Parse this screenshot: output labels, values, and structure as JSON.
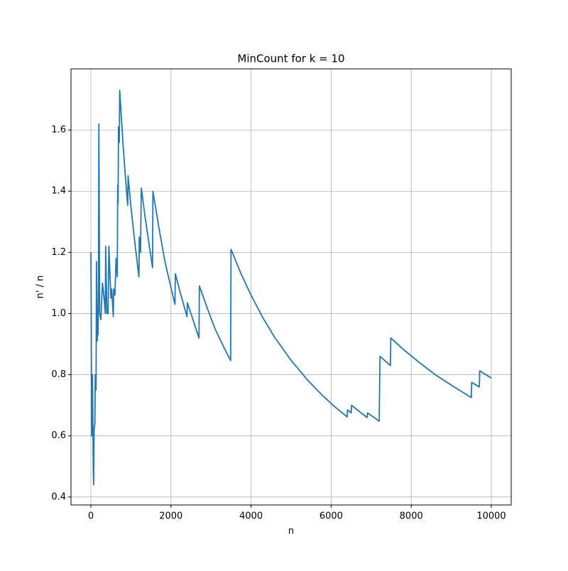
{
  "chart_data": {
    "type": "line",
    "title": "MinCount for k = 10",
    "x_label": "n",
    "y_label": "n' / n",
    "x": [
      1,
      10,
      20,
      40,
      60,
      70,
      80,
      100,
      110,
      130,
      140,
      160,
      170,
      180,
      190,
      200,
      220,
      250,
      290,
      330,
      360,
      370,
      400,
      430,
      450,
      500,
      520,
      560,
      570,
      600,
      630,
      660,
      670,
      680,
      690,
      710,
      720,
      800,
      860,
      920,
      930,
      1000,
      1100,
      1200,
      1210,
      1240,
      1260,
      1350,
      1450,
      1540,
      1550,
      1700,
      1850,
      2000,
      2100,
      2110,
      2250,
      2400,
      2410,
      2550,
      2700,
      2710,
      2900,
      3100,
      3300,
      3490,
      3500,
      3750,
      4000,
      4300,
      4600,
      5000,
      5400,
      5800,
      6100,
      6400,
      6410,
      6500,
      6510,
      6700,
      6900,
      6910,
      7050,
      7200,
      7220,
      7350,
      7480,
      7490,
      7800,
      8200,
      8600,
      9000,
      9500,
      9510,
      9700,
      9710,
      10000
    ],
    "series": [
      {
        "name": "MinCount",
        "color": "#1f77b4",
        "values": [
          1.2,
          1.0,
          0.6,
          0.8,
          0.5,
          0.44,
          0.62,
          0.64,
          0.8,
          0.75,
          1.17,
          0.91,
          1.0,
          0.93,
          1.08,
          1.62,
          1.0,
          0.98,
          1.1,
          1.05,
          1.0,
          1.22,
          1.0,
          1.0,
          1.22,
          1.05,
          1.08,
          0.99,
          1.08,
          1.06,
          1.18,
          1.12,
          1.42,
          1.36,
          1.61,
          1.56,
          1.73,
          1.56,
          1.45,
          1.354,
          1.45,
          1.35,
          1.23,
          1.12,
          1.25,
          1.2,
          1.41,
          1.32,
          1.23,
          1.15,
          1.4,
          1.28,
          1.17,
          1.085,
          1.03,
          1.13,
          1.06,
          0.99,
          1.035,
          0.98,
          0.92,
          1.09,
          1.02,
          0.95,
          0.895,
          0.846,
          1.21,
          1.13,
          1.06,
          0.985,
          0.92,
          0.847,
          0.784,
          0.73,
          0.694,
          0.662,
          0.685,
          0.675,
          0.7,
          0.68,
          0.66,
          0.675,
          0.662,
          0.648,
          0.86,
          0.845,
          0.83,
          0.92,
          0.883,
          0.84,
          0.8,
          0.766,
          0.725,
          0.775,
          0.76,
          0.813,
          0.789
        ]
      }
    ],
    "xlim": [
      -496,
      10496
    ],
    "ylim": [
      0.374,
      1.8
    ],
    "xticks": [
      0,
      2000,
      4000,
      6000,
      8000,
      10000
    ],
    "yticks": [
      0.4,
      0.6,
      0.8,
      {
        "value": 1.0,
        "label": "1.0"
      },
      1.2,
      1.4,
      1.6
    ],
    "grid": true
  }
}
